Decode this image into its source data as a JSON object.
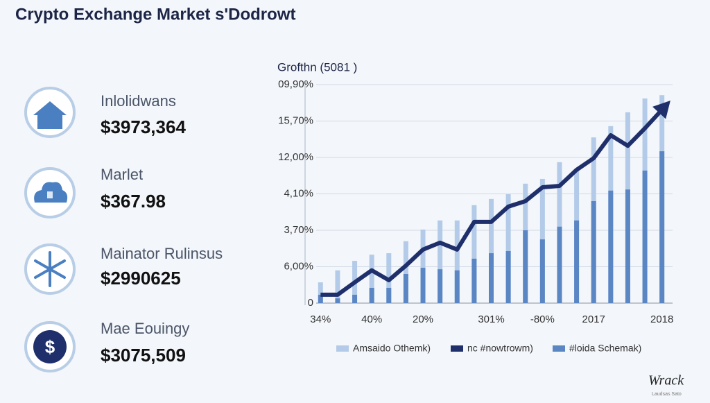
{
  "header": {
    "title": "Crypto Exchange Market s'Dodrowt"
  },
  "cards": [
    {
      "label": "Inlolidwans",
      "value": "$3973,364"
    },
    {
      "label": "Marlet",
      "value": "$367.98"
    },
    {
      "label": "Mainator Rulinsus",
      "value": "$2990625"
    },
    {
      "label": "Mae Eouingy",
      "value": "$3075,509",
      "icon_symbol": "$"
    }
  ],
  "watermark": {
    "title": "Wrack",
    "subtitle": "Laudsas Sato"
  },
  "chart_data": {
    "type": "bar",
    "title": "Grofthn (5081 )",
    "categories": [
      "34%",
      null,
      null,
      "40%",
      null,
      null,
      "20%",
      null,
      null,
      null,
      "301%",
      null,
      null,
      "-80%",
      null,
      null,
      "2017",
      null,
      null,
      null,
      "2018"
    ],
    "series": [
      {
        "name": "Amsaido Othemk)",
        "color": "#b3cbe8",
        "values": [
          0.57,
          0.9,
          1.16,
          1.33,
          1.37,
          1.7,
          2.02,
          2.27,
          2.27,
          2.69,
          2.86,
          2.99,
          3.28,
          3.41,
          3.87,
          3.66,
          4.55,
          4.86,
          5.24,
          5.62,
          5.71
        ]
      },
      {
        "name": "nc #nowtrowm)",
        "color": "#1f2f6b",
        "type": "line",
        "values": [
          0.23,
          0.23,
          0.57,
          0.9,
          0.63,
          1.03,
          1.47,
          1.66,
          1.47,
          2.23,
          2.23,
          2.65,
          2.8,
          3.18,
          3.22,
          3.66,
          3.98,
          4.61,
          4.32,
          4.8,
          5.31
        ]
      },
      {
        "name": "#loida Schemak)",
        "color": "#5b86c4",
        "values": [
          0.23,
          0.13,
          0.23,
          0.42,
          0.42,
          0.8,
          0.97,
          0.93,
          0.9,
          1.22,
          1.37,
          1.43,
          2.0,
          1.75,
          2.1,
          2.27,
          2.8,
          3.09,
          3.12,
          3.64,
          4.17
        ]
      }
    ],
    "ylim": [
      0,
      6
    ],
    "yticks": [
      0,
      {
        "value": 1,
        "label": "6,00%"
      },
      {
        "value": 2,
        "label": "3,70%"
      },
      {
        "value": 3,
        "label": "4,10%"
      },
      {
        "value": 4,
        "label": "12,00%"
      },
      {
        "value": 5,
        "label": "15,70%"
      },
      {
        "value": 6,
        "label": "09,90%"
      }
    ],
    "grid": true
  }
}
